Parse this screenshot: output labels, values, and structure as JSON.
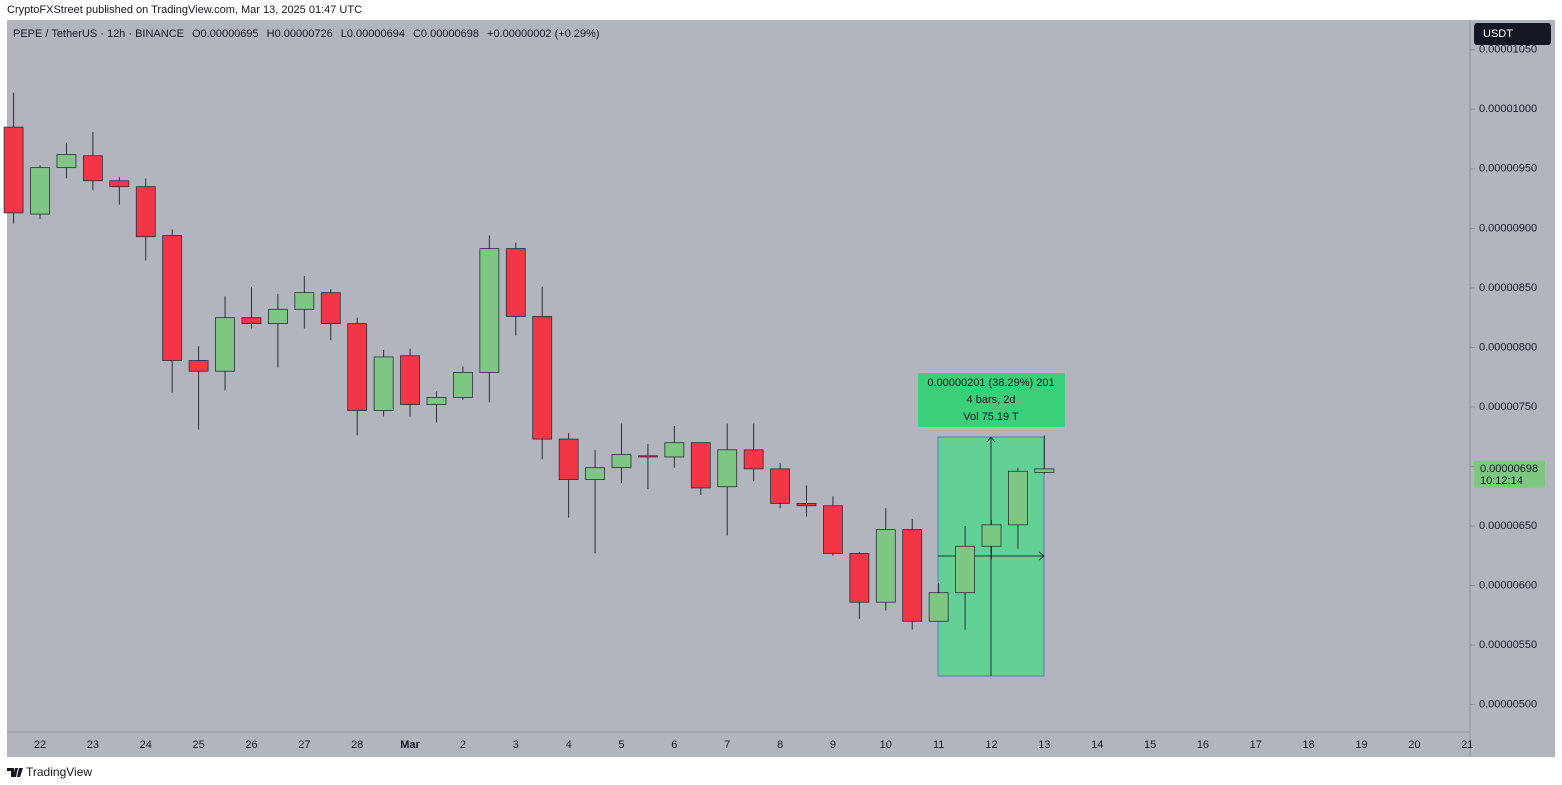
{
  "publisher_line": "CryptoFXStreet published on TradingView.com, Mar 13, 2025 01:47 UTC",
  "header": {
    "symbol": "PEPE / TetherUS · 12h · BINANCE",
    "open": "O0.00000695",
    "high": "H0.00000726",
    "low": "L0.00000694",
    "close": "C0.00000698",
    "change": "+0.00000002 (+0.29%)"
  },
  "currency": "USDT",
  "price_label": {
    "value": "0.00000698",
    "countdown": "10:12:14"
  },
  "measure": {
    "line1": "0.00000201 (38.29%) 201",
    "line2": "4 bars, 2d",
    "line3": "Vol 75.19 T"
  },
  "footer": "TradingView",
  "chart_data": {
    "type": "candlestick",
    "categories": [
      null,
      "22",
      null,
      "23",
      null,
      "24",
      null,
      "25",
      null,
      "26",
      null,
      "27",
      null,
      "28",
      null,
      "Mar",
      null,
      "2",
      null,
      "3",
      null,
      "4",
      null,
      "5",
      null,
      "6",
      null,
      "7",
      null,
      "8",
      null,
      "9",
      null,
      "10",
      null,
      "11",
      null,
      "12",
      null,
      "13",
      null,
      "14",
      null,
      "15",
      null,
      "16",
      null,
      "17",
      null,
      "18",
      null,
      "19",
      null,
      "20",
      null,
      "21"
    ],
    "open": [
      9.85e-06,
      9.12e-06,
      9.51e-06,
      9.61e-06,
      9.4e-06,
      9.35e-06,
      8.94e-06,
      7.89e-06,
      7.8e-06,
      8.25e-06,
      8.2e-06,
      8.32e-06,
      8.46e-06,
      8.2e-06,
      7.47e-06,
      7.93e-06,
      7.52e-06,
      7.58e-06,
      7.79e-06,
      8.83e-06,
      8.26e-06,
      7.23e-06,
      6.89e-06,
      6.99e-06,
      7.09e-06,
      7.08e-06,
      7.2e-06,
      6.83e-06,
      7.14e-06,
      6.98e-06,
      6.69e-06,
      6.67e-06,
      6.27e-06,
      5.86e-06,
      6.47e-06,
      5.7e-06,
      5.94e-06,
      6.33e-06,
      6.51e-06,
      6.95e-06,
      null,
      null,
      null,
      null,
      null,
      null,
      null,
      null,
      null,
      null,
      null,
      null,
      null,
      null,
      null,
      null
    ],
    "high": [
      1.014e-05,
      9.53e-06,
      9.72e-06,
      9.81e-06,
      9.43e-06,
      9.42e-06,
      8.99e-06,
      8.01e-06,
      8.43e-06,
      8.51e-06,
      8.45e-06,
      8.6e-06,
      8.49e-06,
      8.25e-06,
      7.98e-06,
      7.99e-06,
      7.63e-06,
      7.84e-06,
      8.94e-06,
      8.88e-06,
      8.51e-06,
      7.28e-06,
      7.14e-06,
      7.36e-06,
      7.19e-06,
      7.34e-06,
      7.2e-06,
      7.36e-06,
      7.36e-06,
      7.03e-06,
      6.84e-06,
      6.75e-06,
      6.28e-06,
      6.65e-06,
      6.56e-06,
      6.02e-06,
      6.5e-06,
      6.55e-06,
      6.99e-06,
      7.26e-06,
      null,
      null,
      null,
      null,
      null,
      null,
      null,
      null,
      null,
      null,
      null,
      null,
      null,
      null,
      null,
      null
    ],
    "low": [
      9.04e-06,
      9.08e-06,
      9.42e-06,
      9.32e-06,
      9.2e-06,
      8.73e-06,
      7.62e-06,
      7.31e-06,
      7.64e-06,
      8.16e-06,
      7.83e-06,
      8.16e-06,
      8.06e-06,
      7.26e-06,
      7.42e-06,
      7.42e-06,
      7.37e-06,
      7.56e-06,
      7.54e-06,
      8.1e-06,
      7.06e-06,
      6.57e-06,
      6.27e-06,
      6.86e-06,
      6.81e-06,
      6.99e-06,
      6.76e-06,
      6.42e-06,
      6.88e-06,
      6.65e-06,
      6.58e-06,
      6.25e-06,
      5.72e-06,
      5.79e-06,
      5.63e-06,
      5.7e-06,
      5.63e-06,
      6.22e-06,
      6.31e-06,
      6.94e-06,
      null,
      null,
      null,
      null,
      null,
      null,
      null,
      null,
      null,
      null,
      null,
      null,
      null,
      null,
      null,
      null
    ],
    "close": [
      9.13e-06,
      9.51e-06,
      9.62e-06,
      9.4e-06,
      9.35e-06,
      8.93e-06,
      7.89e-06,
      7.8e-06,
      8.25e-06,
      8.2e-06,
      8.32e-06,
      8.46e-06,
      8.2e-06,
      7.47e-06,
      7.92e-06,
      7.52e-06,
      7.58e-06,
      7.79e-06,
      8.83e-06,
      8.26e-06,
      7.23e-06,
      6.89e-06,
      6.99e-06,
      7.1e-06,
      7.08e-06,
      7.2e-06,
      6.82e-06,
      7.14e-06,
      6.98e-06,
      6.69e-06,
      6.67e-06,
      6.27e-06,
      5.86e-06,
      6.47e-06,
      5.7e-06,
      5.94e-06,
      6.33e-06,
      6.51e-06,
      6.96e-06,
      6.98e-06,
      null,
      null,
      null,
      null,
      null,
      null,
      null,
      null,
      null,
      null,
      null,
      null,
      null,
      null,
      null,
      null
    ],
    "up_color": "#7dc783",
    "down_color": "#f23645",
    "ylim": [
      4.77e-06,
      1.075e-05
    ],
    "yticks": [
      {
        "value": 5e-06,
        "label": "0.00000500"
      },
      {
        "value": 5.5e-06,
        "label": "0.00000550"
      },
      {
        "value": 6e-06,
        "label": "0.00000600"
      },
      {
        "value": 6.5e-06,
        "label": "0.00000650"
      },
      {
        "value": 7e-06,
        "label": "0.00000700"
      },
      {
        "value": 7.5e-06,
        "label": "0.00000750"
      },
      {
        "value": 8e-06,
        "label": "0.00000800"
      },
      {
        "value": 8.5e-06,
        "label": "0.00000850"
      },
      {
        "value": 9e-06,
        "label": "0.00000900"
      },
      {
        "value": 9.5e-06,
        "label": "0.00000950"
      },
      {
        "value": 1e-05,
        "label": "0.00001000"
      },
      {
        "value": 1.05e-05,
        "label": "0.00001050"
      }
    ]
  }
}
